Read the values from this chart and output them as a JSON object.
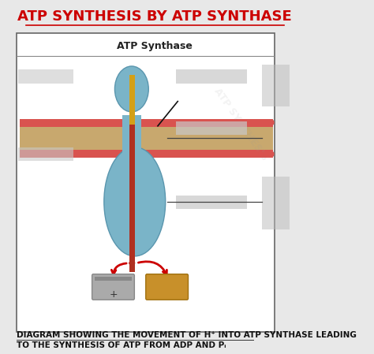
{
  "title": "ATP SYNTHESIS BY ATP SYNTHASE",
  "title_color": "#cc0000",
  "title_fontsize": 13,
  "box_title": "ATP Synthase",
  "subtitle_line1": "DIAGRAM SHOWING THE MOVEMENT OF H⁺ INTO ATP SYNTHASE LEADING",
  "subtitle_line2": "TO THE SYNTHESIS OF ATP FROM ADP AND Pᵢ",
  "subtitle_fontsize": 7.5,
  "bg_color": "#e8e8e8",
  "box_bg": "#ffffff",
  "membrane_color_outer": "#d9534f",
  "membrane_color_inner": "#c8a86e",
  "synthase_blue": "#7ab4c8",
  "synthase_blue_dark": "#5a96ae",
  "stalk_orange": "#d4a017",
  "stalk_red": "#b03020",
  "adp_color": "#aaaaaa",
  "atp_color": "#c8902a",
  "arrow_red": "#cc0000",
  "watermark_alpha": 0.12
}
